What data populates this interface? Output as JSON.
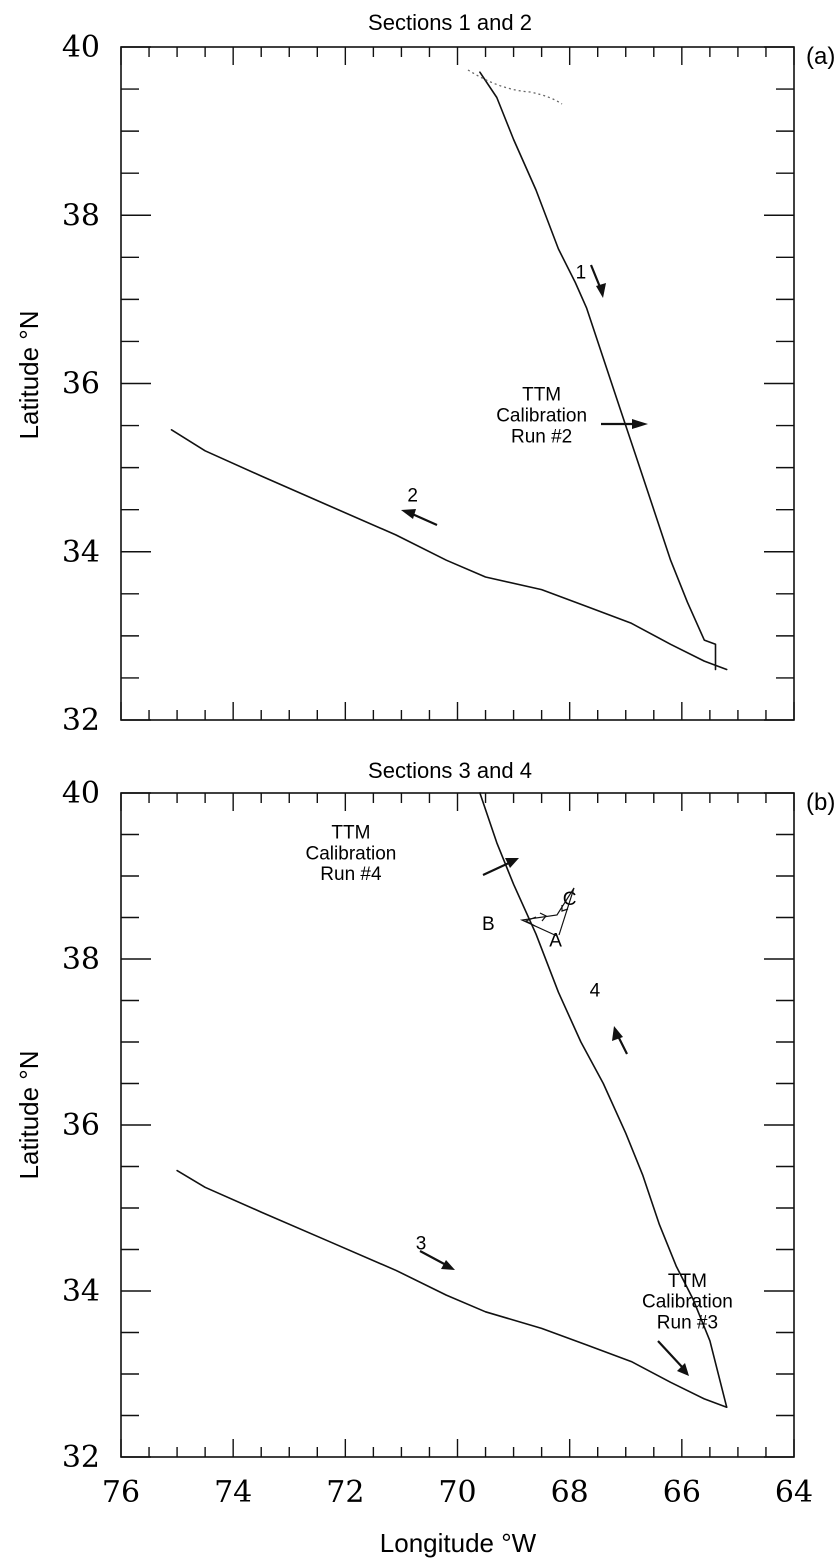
{
  "figure": {
    "x_axis_label": "Longitude °W",
    "x_tick_labels": [
      "76",
      "74",
      "72",
      "70",
      "68",
      "66",
      "64"
    ]
  },
  "chart_data": [
    {
      "type": "line",
      "title": "Sections 1 and 2",
      "panel_label": "(a)",
      "ylabel": "Latitude °N",
      "xlabel": "Longitude °W",
      "xlim": [
        76,
        64
      ],
      "ylim": [
        32,
        40
      ],
      "y_tick_labels": [
        "40",
        "38",
        "36",
        "34",
        "32"
      ],
      "series": [
        {
          "name": "1",
          "x": [
            69.6,
            69.3,
            69.0,
            68.6,
            68.2,
            67.9,
            67.7,
            67.4,
            67.1,
            66.8,
            66.5,
            66.2,
            65.9,
            65.6,
            65.4,
            65.4
          ],
          "y": [
            39.7,
            39.4,
            38.9,
            38.3,
            37.6,
            37.2,
            36.9,
            36.3,
            35.7,
            35.1,
            34.5,
            33.9,
            33.4,
            32.95,
            32.9,
            32.6
          ]
        },
        {
          "name": "2",
          "x": [
            65.2,
            65.6,
            66.2,
            66.9,
            67.7,
            68.5,
            69.5,
            70.2,
            71.1,
            72.3,
            73.5,
            74.5,
            75.1
          ],
          "y": [
            32.6,
            32.7,
            32.9,
            33.15,
            33.35,
            33.55,
            33.7,
            33.9,
            34.2,
            34.55,
            34.9,
            35.2,
            35.45
          ]
        }
      ],
      "annotations": [
        {
          "text": "1",
          "x": 67.8,
          "y": 37.25
        },
        {
          "text": "2",
          "x": 70.8,
          "y": 34.6
        },
        {
          "text": "TTM",
          "x": 68.5,
          "y": 35.8
        },
        {
          "text": "Calibration",
          "x": 68.5,
          "y": 35.55
        },
        {
          "text": "Run #2",
          "x": 68.5,
          "y": 35.3
        }
      ]
    },
    {
      "type": "line",
      "title": "Sections 3 and 4",
      "panel_label": "(b)",
      "ylabel": "Latitude °N",
      "xlabel": "Longitude °W",
      "xlim": [
        76,
        64
      ],
      "ylim": [
        32,
        40
      ],
      "y_tick_labels": [
        "40",
        "38",
        "36",
        "34",
        "32"
      ],
      "series": [
        {
          "name": "4",
          "x": [
            65.2,
            65.5,
            65.8,
            66.1,
            66.4,
            66.7,
            67.0,
            67.4,
            67.8,
            68.2,
            68.6,
            69.0,
            69.3,
            69.6
          ],
          "y": [
            32.6,
            33.4,
            33.9,
            34.3,
            34.8,
            35.4,
            35.9,
            36.5,
            37.0,
            37.6,
            38.3,
            38.9,
            39.4,
            40.0
          ]
        },
        {
          "name": "3",
          "x": [
            65.2,
            65.6,
            66.2,
            66.9,
            67.7,
            68.5,
            69.5,
            70.2,
            71.1,
            72.3,
            73.5,
            74.5,
            75.0
          ],
          "y": [
            32.6,
            32.7,
            32.9,
            33.15,
            33.35,
            33.55,
            33.75,
            33.95,
            34.25,
            34.6,
            34.95,
            35.25,
            35.45
          ]
        }
      ],
      "annotations": [
        {
          "text": "TTM",
          "x": 71.9,
          "y": 39.45
        },
        {
          "text": "Calibration",
          "x": 71.9,
          "y": 39.2
        },
        {
          "text": "Run #4",
          "x": 71.9,
          "y": 38.95
        },
        {
          "text": "A",
          "x": 68.25,
          "y": 38.15
        },
        {
          "text": "B",
          "x": 69.45,
          "y": 38.35
        },
        {
          "text": "C",
          "x": 68.0,
          "y": 38.65
        },
        {
          "text": "4",
          "x": 67.55,
          "y": 37.55
        },
        {
          "text": "3",
          "x": 70.65,
          "y": 34.5
        },
        {
          "text": "TTM",
          "x": 65.9,
          "y": 34.05
        },
        {
          "text": "Calibration",
          "x": 65.9,
          "y": 33.8
        },
        {
          "text": "Run #3",
          "x": 65.9,
          "y": 33.55
        }
      ]
    }
  ]
}
